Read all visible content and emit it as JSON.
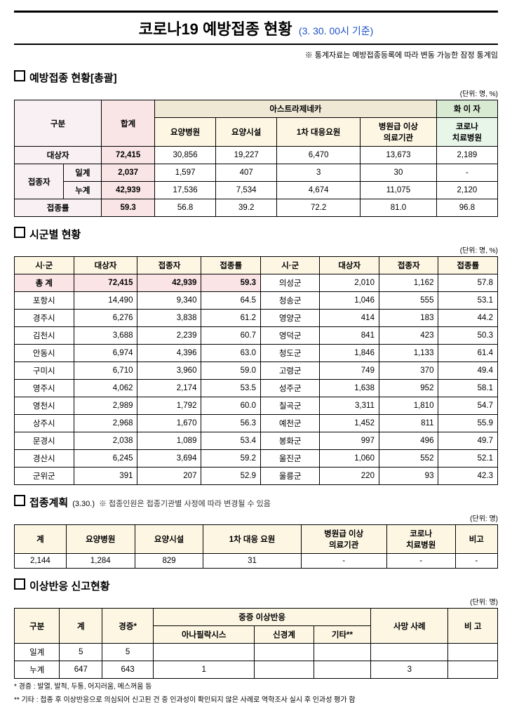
{
  "title": "코로나19 예방접종 현황",
  "subtitle": "(3. 30. 00시 기준)",
  "top_note": "※ 통계자료는 예방접종등록에 따라 변동 가능한 잠정 통계임",
  "unit": "(단위: 명, %)",
  "unit_plan": "(단위: 명)",
  "unit_adv": "(단위: 명)",
  "s1": {
    "title": "예방접종 현황[총괄]",
    "colors": {
      "az": "#eee8d5",
      "pz": "#d9ead3",
      "group": "#f8f0f3",
      "sum": "#f9e4e6",
      "az_sub": "#fdf6e3",
      "pz_sub": "#e8f5e9"
    },
    "h": {
      "gubun": "구분",
      "total": "합계",
      "az": "아스트라제네카",
      "pz": "화 이 자",
      "c1": "요양병원",
      "c2": "요양시설",
      "c3": "1차 대응요원",
      "c4": "병원급 이상\n의료기관",
      "c5": "코로나\n치료병원",
      "r1": "대상자",
      "r2": "접종자",
      "r2a": "일계",
      "r2b": "누계",
      "r3": "접종률"
    },
    "rows": {
      "target": [
        "72,415",
        "30,856",
        "19,227",
        "6,470",
        "13,673",
        "2,189"
      ],
      "daily": [
        "2,037",
        "1,597",
        "407",
        "3",
        "30",
        "-"
      ],
      "total": [
        "42,939",
        "17,536",
        "7,534",
        "4,674",
        "11,075",
        "2,120"
      ],
      "rate": [
        "59.3",
        "56.8",
        "39.2",
        "72.2",
        "81.0",
        "96.8"
      ]
    }
  },
  "s2": {
    "title": "시군별 현황",
    "h": {
      "city": "시·군",
      "target": "대상자",
      "vacc": "접종자",
      "rate": "접종률"
    },
    "total_label": "총 계",
    "total": [
      "72,415",
      "42,939",
      "59.3"
    ],
    "left": [
      [
        "포항시",
        "14,490",
        "9,340",
        "64.5"
      ],
      [
        "경주시",
        "6,276",
        "3,838",
        "61.2"
      ],
      [
        "김천시",
        "3,688",
        "2,239",
        "60.7"
      ],
      [
        "안동시",
        "6,974",
        "4,396",
        "63.0"
      ],
      [
        "구미시",
        "6,710",
        "3,960",
        "59.0"
      ],
      [
        "영주시",
        "4,062",
        "2,174",
        "53.5"
      ],
      [
        "영천시",
        "2,989",
        "1,792",
        "60.0"
      ],
      [
        "상주시",
        "2,968",
        "1,670",
        "56.3"
      ],
      [
        "문경시",
        "2,038",
        "1,089",
        "53.4"
      ],
      [
        "경산시",
        "6,245",
        "3,694",
        "59.2"
      ],
      [
        "군위군",
        "391",
        "207",
        "52.9"
      ]
    ],
    "right": [
      [
        "의성군",
        "2,010",
        "1,162",
        "57.8"
      ],
      [
        "청송군",
        "1,046",
        "555",
        "53.1"
      ],
      [
        "영양군",
        "414",
        "183",
        "44.2"
      ],
      [
        "영덕군",
        "841",
        "423",
        "50.3"
      ],
      [
        "청도군",
        "1,846",
        "1,133",
        "61.4"
      ],
      [
        "고령군",
        "749",
        "370",
        "49.4"
      ],
      [
        "성주군",
        "1,638",
        "952",
        "58.1"
      ],
      [
        "칠곡군",
        "3,311",
        "1,810",
        "54.7"
      ],
      [
        "예천군",
        "1,452",
        "811",
        "55.9"
      ],
      [
        "봉화군",
        "997",
        "496",
        "49.7"
      ],
      [
        "울진군",
        "1,060",
        "552",
        "52.1"
      ],
      [
        "울릉군",
        "220",
        "93",
        "42.3"
      ]
    ]
  },
  "s3": {
    "title": "접종계획",
    "date": "(3.30.)",
    "note": "※ 접종인원은 접종기관별 사정에 따라 변경될 수 있음",
    "h": [
      "계",
      "요양병원",
      "요양시설",
      "1차 대응 요원",
      "병원급 이상\n의료기관",
      "코로나\n치료병원",
      "비고"
    ],
    "row": [
      "2,144",
      "1,284",
      "829",
      "31",
      "-",
      "-",
      "-"
    ]
  },
  "s4": {
    "title": "이상반응 신고현황",
    "h": {
      "gubun": "구분",
      "total": "계",
      "mild": "경증*",
      "severe": "중증 이상반응",
      "sv1": "아나필락시스",
      "sv2": "신경계",
      "sv3": "기타**",
      "death": "사망 사례",
      "note": "비  고"
    },
    "rows": [
      [
        "일계",
        "5",
        "5",
        "",
        "",
        "",
        "",
        ""
      ],
      [
        "누계",
        "647",
        "643",
        "1",
        "",
        "",
        "3",
        ""
      ]
    ],
    "foot1": "* 경증 : 발열, 발적, 두통, 어지러움, 메스꺼움 등",
    "foot2": "** 기타 : 접종 후 이상반응으로 의심되어 신고된 건 중 인과성이 확인되지 않은 사례로 역학조사 실시 후 인과성 평가 함"
  }
}
